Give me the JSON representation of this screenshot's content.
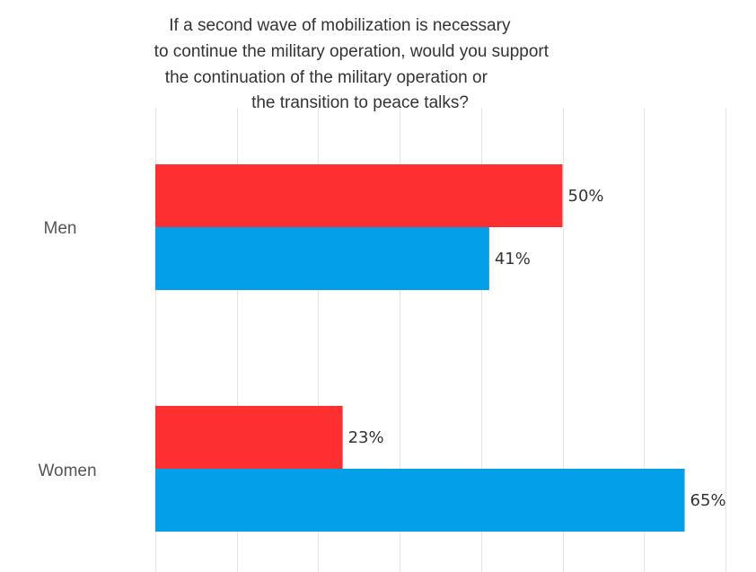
{
  "chart_data": {
    "type": "bar",
    "orientation": "horizontal",
    "title_lines": [
      "If a second wave of mobilization is necessary",
      "to continue the military operation, would you support",
      "the continuation of the military operation or",
      "the transition to peace talks?"
    ],
    "categories": [
      "Men",
      "Women"
    ],
    "series": [
      {
        "color": "#fe2f31",
        "values": [
          50,
          23
        ],
        "labels": [
          "50%",
          "23%"
        ]
      },
      {
        "color": "#039fe9",
        "values": [
          41,
          65
        ],
        "labels": [
          "41%",
          "65%"
        ]
      }
    ],
    "xlim": [
      0,
      70
    ],
    "grid": true,
    "legend": "none"
  }
}
